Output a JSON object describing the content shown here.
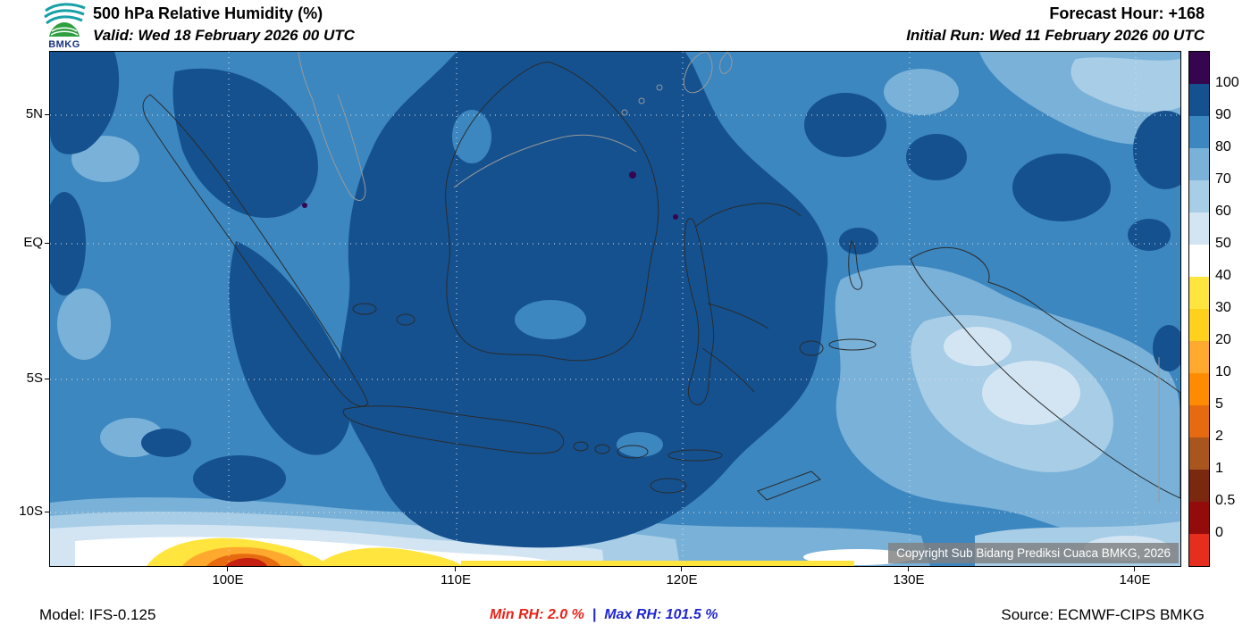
{
  "header": {
    "logo_text": "BMKG",
    "title": "500 hPa Relative Humidity (%)",
    "valid_label": "Valid: Wed 18 February 2026 00 UTC",
    "forecast_hour_label": "Forecast Hour: +168",
    "initial_run_label": "Initial Run: Wed 11 February 2026 00 UTC"
  },
  "map": {
    "lat_ticks": [
      "5N",
      "EQ",
      "5S",
      "10S"
    ],
    "lon_ticks": [
      "100E",
      "110E",
      "120E",
      "130E",
      "140E"
    ],
    "copyright": "Copyright Sub Bidang Prediksi Cuaca BMKG, 2026"
  },
  "colorbar": {
    "labels": [
      "100",
      "90",
      "80",
      "70",
      "60",
      "50",
      "40",
      "30",
      "20",
      "10",
      "5",
      "2",
      "1",
      "0.5",
      "0"
    ],
    "colors_top_to_bottom": [
      "#35064f",
      "#15518f",
      "#3c87c0",
      "#79b1d8",
      "#a8cde6",
      "#d3e5f3",
      "#ffffff",
      "#ffe53d",
      "#ffd11c",
      "#ffa92e",
      "#ff8c00",
      "#e86a10",
      "#a8551e",
      "#7a2810",
      "#930b0b",
      "#e62e1e"
    ]
  },
  "footer": {
    "model_label": "Model: IFS-0.125",
    "min_rh_label": "Min RH: 2.0 %",
    "separator": "|",
    "max_rh_label": "Max RH: 101.5 %",
    "source_label": "Source: ECMWF-CIPS BMKG",
    "min_rh_color": "#e8231a",
    "max_rh_color": "#2026d2"
  },
  "chart_data": {
    "type": "heatmap",
    "title": "500 hPa Relative Humidity (%)",
    "variable": "Relative Humidity at 500 hPa",
    "units": "%",
    "contour_levels": [
      0,
      0.5,
      1,
      2,
      5,
      10,
      20,
      30,
      40,
      50,
      60,
      70,
      80,
      90,
      100
    ],
    "lat_gridlines": [
      "5N",
      "EQ",
      "5S",
      "10S"
    ],
    "lon_gridlines": [
      "100E",
      "110E",
      "120E",
      "130E",
      "140E"
    ],
    "min_value_percent": 2.0,
    "max_value_percent": 101.5,
    "legend_position": "right",
    "grid": "dotted"
  }
}
